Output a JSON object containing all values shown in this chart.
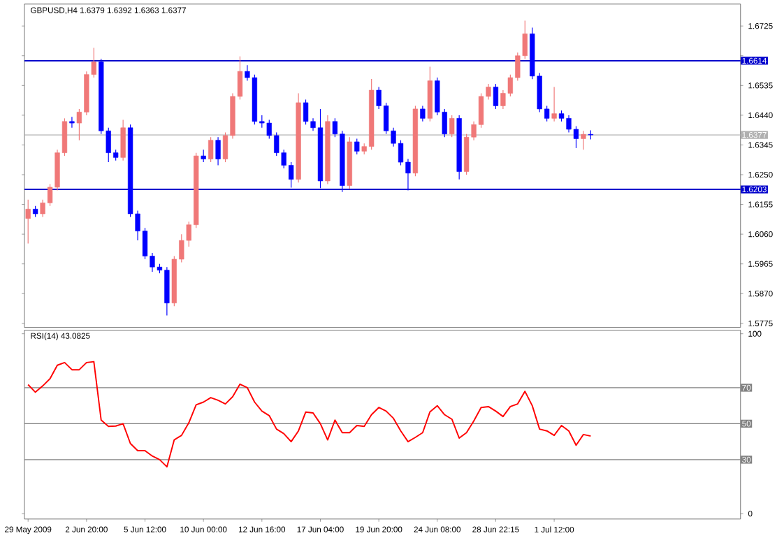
{
  "chart_data": [
    {
      "type": "candlestick",
      "title": "GBPUSD,H4  1.6379 1.6392 1.6363 1.6377",
      "categories": [
        null,
        null,
        null,
        null,
        null,
        null,
        null,
        null,
        null,
        null,
        null,
        null,
        null,
        null,
        null,
        null,
        null,
        null,
        null,
        null,
        null,
        null,
        null,
        null,
        null,
        null,
        null,
        null,
        null,
        null,
        null,
        null,
        null,
        null,
        null,
        null,
        null,
        null,
        null,
        null,
        null,
        null,
        null,
        null,
        null,
        null,
        null,
        null,
        null,
        null,
        null,
        null,
        null,
        null,
        null,
        null,
        null,
        null,
        null,
        null,
        null,
        null,
        null,
        null,
        null,
        null,
        null,
        null,
        null,
        null,
        null,
        null,
        null,
        null,
        null,
        null,
        null,
        null,
        null,
        null,
        null,
        null,
        null,
        null,
        null,
        null,
        null,
        null,
        null,
        null,
        null,
        null,
        null,
        null,
        null,
        null,
        null,
        null
      ],
      "ohlc": [
        [
          1.611,
          1.617,
          1.603,
          1.614
        ],
        [
          1.614,
          1.615,
          1.6115,
          1.6125
        ],
        [
          1.6125,
          1.617,
          1.6115,
          1.616
        ],
        [
          1.616,
          1.622,
          1.615,
          1.621
        ],
        [
          1.621,
          1.633,
          1.62,
          1.632
        ],
        [
          1.632,
          1.643,
          1.631,
          1.642
        ],
        [
          1.642,
          1.6435,
          1.64,
          1.6415
        ],
        [
          1.6415,
          1.646,
          1.636,
          1.645
        ],
        [
          1.645,
          1.658,
          1.644,
          1.657
        ],
        [
          1.657,
          1.6655,
          1.656,
          1.661
        ],
        [
          1.661,
          1.662,
          1.638,
          1.639
        ],
        [
          1.639,
          1.64,
          1.629,
          1.632
        ],
        [
          1.632,
          1.633,
          1.6295,
          1.6305
        ],
        [
          1.6305,
          1.6425,
          1.6295,
          1.64
        ],
        [
          1.64,
          1.641,
          1.6115,
          1.6125
        ],
        [
          1.6125,
          1.6135,
          1.604,
          1.607
        ],
        [
          1.607,
          1.608,
          1.598,
          1.599
        ],
        [
          1.599,
          1.6,
          1.594,
          1.5955
        ],
        [
          1.5955,
          1.5965,
          1.5935,
          1.5945
        ],
        [
          1.5945,
          1.5955,
          1.58,
          1.584
        ],
        [
          1.584,
          1.599,
          1.583,
          1.598
        ],
        [
          1.598,
          1.606,
          1.597,
          1.604
        ],
        [
          1.604,
          1.61,
          1.602,
          1.609
        ],
        [
          1.609,
          1.632,
          1.608,
          1.631
        ],
        [
          1.631,
          1.633,
          1.629,
          1.63
        ],
        [
          1.63,
          1.637,
          1.629,
          1.636
        ],
        [
          1.636,
          1.637,
          1.628,
          1.63
        ],
        [
          1.63,
          1.6385,
          1.629,
          1.6375
        ],
        [
          1.6375,
          1.651,
          1.6365,
          1.65
        ],
        [
          1.65,
          1.6628,
          1.649,
          1.658
        ],
        [
          1.658,
          1.66,
          1.655,
          1.656
        ],
        [
          1.656,
          1.657,
          1.641,
          1.642
        ],
        [
          1.642,
          1.644,
          1.64,
          1.6415
        ],
        [
          1.6415,
          1.6425,
          1.6365,
          1.6375
        ],
        [
          1.6375,
          1.6385,
          1.631,
          1.632
        ],
        [
          1.632,
          1.633,
          1.627,
          1.628
        ],
        [
          1.628,
          1.629,
          1.6209,
          1.6235
        ],
        [
          1.6235,
          1.651,
          1.6225,
          1.648
        ],
        [
          1.648,
          1.649,
          1.641,
          1.642
        ],
        [
          1.642,
          1.643,
          1.639,
          1.64
        ],
        [
          1.64,
          1.646,
          1.6207,
          1.623
        ],
        [
          1.623,
          1.644,
          1.622,
          1.642
        ],
        [
          1.642,
          1.643,
          1.637,
          1.638
        ],
        [
          1.638,
          1.639,
          1.6195,
          1.6215
        ],
        [
          1.6215,
          1.637,
          1.6205,
          1.6355
        ],
        [
          1.6355,
          1.6365,
          1.6315,
          1.6325
        ],
        [
          1.6325,
          1.635,
          1.6315,
          1.634
        ],
        [
          1.634,
          1.6556,
          1.633,
          1.652
        ],
        [
          1.652,
          1.653,
          1.646,
          1.647
        ],
        [
          1.647,
          1.648,
          1.638,
          1.639
        ],
        [
          1.639,
          1.64,
          1.634,
          1.635
        ],
        [
          1.635,
          1.636,
          1.628,
          1.629
        ],
        [
          1.629,
          1.63,
          1.62,
          1.6255
        ],
        [
          1.6255,
          1.647,
          1.6245,
          1.646
        ],
        [
          1.646,
          1.647,
          1.642,
          1.643
        ],
        [
          1.643,
          1.6595,
          1.642,
          1.655
        ],
        [
          1.655,
          1.656,
          1.644,
          1.645
        ],
        [
          1.645,
          1.646,
          1.637,
          1.638
        ],
        [
          1.638,
          1.644,
          1.637,
          1.643
        ],
        [
          1.643,
          1.644,
          1.6235,
          1.626
        ],
        [
          1.626,
          1.638,
          1.625,
          1.637
        ],
        [
          1.637,
          1.642,
          1.636,
          1.641
        ],
        [
          1.641,
          1.651,
          1.64,
          1.65
        ],
        [
          1.65,
          1.654,
          1.649,
          1.653
        ],
        [
          1.653,
          1.654,
          1.646,
          1.647
        ],
        [
          1.647,
          1.652,
          1.646,
          1.651
        ],
        [
          1.651,
          1.657,
          1.65,
          1.656
        ],
        [
          1.656,
          1.664,
          1.655,
          1.663
        ],
        [
          1.663,
          1.6742,
          1.662,
          1.67
        ],
        [
          1.67,
          1.672,
          1.6555,
          1.6565
        ],
        [
          1.6565,
          1.6575,
          1.645,
          1.646
        ],
        [
          1.646,
          1.647,
          1.642,
          1.643
        ],
        [
          1.643,
          1.653,
          1.642,
          1.6445
        ],
        [
          1.6445,
          1.6455,
          1.642,
          1.643
        ],
        [
          1.643,
          1.644,
          1.6385,
          1.6395
        ],
        [
          1.6395,
          1.6405,
          1.6335,
          1.6365
        ],
        [
          1.6365,
          1.639,
          1.633,
          1.6379
        ],
        [
          1.6379,
          1.6392,
          1.6363,
          1.6377
        ],
        null,
        null,
        null,
        null,
        null,
        null,
        null,
        null,
        null,
        null,
        null,
        null,
        null,
        null,
        null,
        null,
        null,
        null,
        null,
        null
      ],
      "colors": [
        "#f07878",
        "#0000ff",
        "#f07878",
        "#f07878",
        "#f07878",
        "#f07878",
        "#0000ff",
        "#f07878",
        "#f07878",
        "#f07878",
        "#0000ff",
        "#0000ff",
        "#0000ff",
        "#f07878",
        "#0000ff",
        "#0000ff",
        "#0000ff",
        "#0000ff",
        "#0000ff",
        "#0000ff",
        "#f07878",
        "#f07878",
        "#f07878",
        "#f07878",
        "#0000ff",
        "#f07878",
        "#0000ff",
        "#f07878",
        "#f07878",
        "#f07878",
        "#0000ff",
        "#0000ff",
        "#0000ff",
        "#0000ff",
        "#0000ff",
        "#0000ff",
        "#0000ff",
        "#f07878",
        "#0000ff",
        "#0000ff",
        "#0000ff",
        "#f07878",
        "#0000ff",
        "#0000ff",
        "#f07878",
        "#0000ff",
        "#f07878",
        "#f07878",
        "#0000ff",
        "#0000ff",
        "#0000ff",
        "#0000ff",
        "#0000ff",
        "#f07878",
        "#0000ff",
        "#f07878",
        "#0000ff",
        "#0000ff",
        "#f07878",
        "#0000ff",
        "#f07878",
        "#f07878",
        "#f07878",
        "#f07878",
        "#0000ff",
        "#f07878",
        "#f07878",
        "#f07878",
        "#f07878",
        "#0000ff",
        "#0000ff",
        "#0000ff",
        "#f07878",
        "#0000ff",
        "#0000ff",
        "#0000ff",
        "#f07878",
        "#0000ff",
        null,
        null,
        null,
        null,
        null,
        null,
        null,
        null,
        null,
        null,
        null,
        null,
        null,
        null,
        null,
        null,
        null,
        null,
        null,
        null
      ],
      "ylim": [
        1.5762,
        1.6795
      ],
      "yticks": [
        1.5775,
        {
          "value": 1.587,
          "label": "1.5870"
        },
        1.5965,
        {
          "value": 1.606,
          "label": "1.6060"
        },
        1.6155,
        {
          "value": 1.625,
          "label": "1.6250"
        },
        1.6345,
        {
          "value": 1.644,
          "label": "1.6440"
        },
        1.6535,
        {
          "value": 1.663,
          "label": null
        },
        1.6725
      ],
      "ref_lines": [
        {
          "axis": "y",
          "value": 1.6614,
          "label": "1.6614",
          "color": "#0000cc"
        },
        {
          "axis": "y",
          "value": 1.6203,
          "label": "1.6203",
          "color": "#0000cc"
        },
        {
          "axis": "y",
          "value": 1.6377,
          "label": "1.6377",
          "color": "#b0b0b0"
        }
      ]
    },
    {
      "type": "line",
      "title": "RSI(14) 43.0825",
      "color": "#ff0000",
      "categories": [
        "29 May 2009",
        null,
        null,
        null,
        null,
        null,
        null,
        null,
        "2 Jun 20:00",
        null,
        null,
        null,
        null,
        null,
        null,
        null,
        "5 Jun 12:00",
        null,
        null,
        null,
        null,
        null,
        null,
        null,
        "10 Jun 00:00",
        null,
        null,
        null,
        null,
        null,
        null,
        null,
        "12 Jun 16:00",
        null,
        null,
        null,
        null,
        null,
        null,
        null,
        "17 Jun 04:00",
        null,
        null,
        null,
        null,
        null,
        null,
        null,
        "19 Jun 20:00",
        null,
        null,
        null,
        null,
        null,
        null,
        null,
        "24 Jun 08:00",
        null,
        null,
        null,
        null,
        null,
        null,
        null,
        "28 Jun 22:15",
        null,
        null,
        null,
        null,
        null,
        null,
        null,
        "1 Jul 12:00",
        null,
        null,
        null,
        null,
        null,
        null,
        null,
        null,
        null,
        null,
        null,
        null,
        null,
        null,
        null,
        null,
        null,
        null,
        null,
        null,
        null,
        null,
        null,
        null,
        null
      ],
      "values": [
        71.7,
        67.5,
        71,
        75,
        82.5,
        84,
        80,
        80,
        84,
        84.5,
        52,
        48.5,
        48.7,
        50,
        39,
        35,
        35,
        32,
        30,
        26,
        41,
        43.5,
        50.5,
        60.5,
        62,
        64.5,
        63,
        61,
        65,
        72,
        70,
        62,
        57,
        54.5,
        47,
        44.5,
        40,
        46,
        56.5,
        56,
        50,
        41,
        52,
        45,
        45,
        49,
        48.5,
        55,
        59,
        57,
        53,
        46,
        40,
        42.4,
        45,
        56.6,
        60,
        55,
        52.5,
        42,
        45,
        51.5,
        59,
        59.5,
        57,
        54,
        59.5,
        61,
        68,
        60,
        47,
        46,
        43.5,
        49,
        46,
        38,
        44,
        43.1,
        null,
        null,
        null,
        null,
        null,
        null,
        null,
        null,
        null,
        null,
        null,
        null,
        null,
        null,
        null,
        null,
        null,
        null,
        null,
        null
      ],
      "ylim": [
        -3,
        102
      ],
      "yticks": [
        0,
        100
      ],
      "ref_lines": [
        {
          "axis": "y",
          "value": 70,
          "label": "70",
          "color": "#808080"
        },
        {
          "axis": "y",
          "value": 50,
          "label": "50",
          "color": "#808080"
        },
        {
          "axis": "y",
          "value": 30,
          "label": "30",
          "color": "#808080"
        }
      ]
    }
  ]
}
